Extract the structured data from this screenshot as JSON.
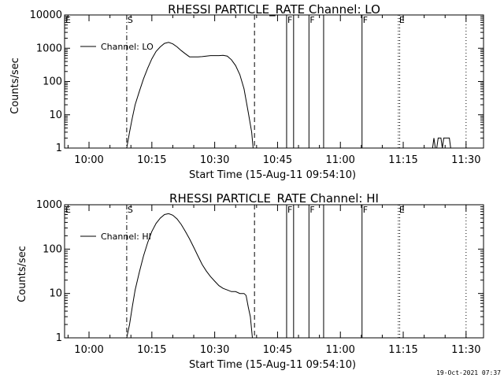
{
  "colors": {
    "background": "#ffffff",
    "foreground": "#000000"
  },
  "timestamp": "19-Oct-2021 07:37",
  "chart_data": [
    {
      "type": "line",
      "title": "RHESSI PARTICLE_RATE Channel: LO",
      "xlabel": "Start Time (15-Aug-11 09:54:10)",
      "ylabel": "Counts/sec",
      "yscale": "log",
      "ylim": [
        1,
        10000
      ],
      "xlim": [
        "09:54:10",
        "11:34:10"
      ],
      "x_ticks": [
        "10:00",
        "10:15",
        "10:30",
        "10:45",
        "11:00",
        "11:15",
        "11:30"
      ],
      "y_ticks": [
        "1",
        "10",
        "100",
        "1000",
        "10000"
      ],
      "legend": {
        "label": "Channel: LO",
        "position": "top-left"
      },
      "series": [
        {
          "name": "Channel: LO",
          "points": [
            [
              "10:09:00",
              1
            ],
            [
              "10:09:40",
              3
            ],
            [
              "10:10:20",
              8
            ],
            [
              "10:11:00",
              20
            ],
            [
              "10:12:00",
              50
            ],
            [
              "10:13:00",
              120
            ],
            [
              "10:14:00",
              250
            ],
            [
              "10:15:00",
              480
            ],
            [
              "10:16:00",
              800
            ],
            [
              "10:17:00",
              1100
            ],
            [
              "10:18:00",
              1400
            ],
            [
              "10:19:00",
              1500
            ],
            [
              "10:20:00",
              1350
            ],
            [
              "10:21:00",
              1100
            ],
            [
              "10:22:00",
              850
            ],
            [
              "10:23:00",
              680
            ],
            [
              "10:24:00",
              550
            ],
            [
              "10:26:00",
              550
            ],
            [
              "10:27:00",
              560
            ],
            [
              "10:28:00",
              580
            ],
            [
              "10:29:00",
              600
            ],
            [
              "10:31:00",
              600
            ],
            [
              "10:32:00",
              610
            ],
            [
              "10:33:00",
              580
            ],
            [
              "10:34:00",
              450
            ],
            [
              "10:35:00",
              300
            ],
            [
              "10:36:00",
              160
            ],
            [
              "10:37:00",
              60
            ],
            [
              "10:38:00",
              12
            ],
            [
              "10:38:50",
              3
            ],
            [
              "10:39:10",
              1
            ]
          ]
        },
        {
          "points": [
            [
              "11:22:00",
              1
            ],
            [
              "11:22:20",
              2
            ],
            [
              "11:22:40",
              1
            ],
            [
              "11:23:00",
              1
            ],
            [
              "11:23:20",
              2
            ],
            [
              "11:24:00",
              2
            ],
            [
              "11:24:20",
              1
            ],
            [
              "11:24:40",
              2
            ],
            [
              "11:26:00",
              2
            ],
            [
              "11:26:20",
              1
            ]
          ]
        }
      ],
      "markers": [
        {
          "time": "10:09:00",
          "style": "dashdot",
          "label": "S"
        },
        {
          "time": "10:39:30",
          "style": "dashed",
          "label": ""
        },
        {
          "time": "10:47:10",
          "style": "solid",
          "label": "F"
        },
        {
          "time": "10:48:50",
          "style": "solid",
          "label": ""
        },
        {
          "time": "10:52:30",
          "style": "solid",
          "label": "F"
        },
        {
          "time": "10:56:00",
          "style": "solid",
          "label": ""
        },
        {
          "time": "11:05:10",
          "style": "solid",
          "label": "F"
        },
        {
          "time": "11:13:50",
          "style": "dotted",
          "label": "E"
        },
        {
          "time": "11:14:10",
          "style": "dotted",
          "label": ""
        },
        {
          "time": "11:30:00",
          "style": "dotted",
          "label": ""
        }
      ],
      "corner_label": "E"
    },
    {
      "type": "line",
      "title": "RHESSI PARTICLE_RATE Channel: HI",
      "xlabel": "Start Time (15-Aug-11 09:54:10)",
      "ylabel": "Counts/sec",
      "yscale": "log",
      "ylim": [
        1,
        1000
      ],
      "xlim": [
        "09:54:10",
        "11:34:10"
      ],
      "x_ticks": [
        "10:00",
        "10:15",
        "10:30",
        "10:45",
        "11:00",
        "11:15",
        "11:30"
      ],
      "y_ticks": [
        "1",
        "10",
        "100",
        "1000"
      ],
      "legend": {
        "label": "Channel: HI",
        "position": "top-left"
      },
      "series": [
        {
          "name": "Channel: HI",
          "points": [
            [
              "10:09:00",
              1
            ],
            [
              "10:09:40",
              2
            ],
            [
              "10:10:20",
              5
            ],
            [
              "10:11:00",
              12
            ],
            [
              "10:12:00",
              30
            ],
            [
              "10:13:00",
              70
            ],
            [
              "10:14:00",
              140
            ],
            [
              "10:15:00",
              250
            ],
            [
              "10:16:00",
              380
            ],
            [
              "10:17:00",
              500
            ],
            [
              "10:18:00",
              600
            ],
            [
              "10:19:00",
              630
            ],
            [
              "10:20:00",
              580
            ],
            [
              "10:21:00",
              480
            ],
            [
              "10:22:00",
              360
            ],
            [
              "10:23:00",
              250
            ],
            [
              "10:24:00",
              170
            ],
            [
              "10:25:00",
              110
            ],
            [
              "10:26:00",
              70
            ],
            [
              "10:27:00",
              45
            ],
            [
              "10:28:00",
              32
            ],
            [
              "10:29:00",
              24
            ],
            [
              "10:30:00",
              19
            ],
            [
              "10:31:00",
              15
            ],
            [
              "10:32:00",
              13
            ],
            [
              "10:33:00",
              12
            ],
            [
              "10:34:00",
              11
            ],
            [
              "10:35:00",
              11
            ],
            [
              "10:36:00",
              10
            ],
            [
              "10:37:00",
              10
            ],
            [
              "10:37:30",
              9
            ],
            [
              "10:38:00",
              5
            ],
            [
              "10:38:30",
              3
            ],
            [
              "10:39:00",
              1
            ]
          ]
        }
      ],
      "markers": [
        {
          "time": "10:09:00",
          "style": "dashdot",
          "label": "S"
        },
        {
          "time": "10:39:30",
          "style": "dashed",
          "label": ""
        },
        {
          "time": "10:47:10",
          "style": "solid",
          "label": "F"
        },
        {
          "time": "10:48:50",
          "style": "solid",
          "label": ""
        },
        {
          "time": "10:52:30",
          "style": "solid",
          "label": "F"
        },
        {
          "time": "10:56:00",
          "style": "solid",
          "label": ""
        },
        {
          "time": "11:05:10",
          "style": "solid",
          "label": "F"
        },
        {
          "time": "11:13:50",
          "style": "dotted",
          "label": "E"
        },
        {
          "time": "11:14:10",
          "style": "dotted",
          "label": ""
        },
        {
          "time": "11:30:00",
          "style": "dotted",
          "label": ""
        }
      ],
      "corner_label": "E"
    }
  ]
}
